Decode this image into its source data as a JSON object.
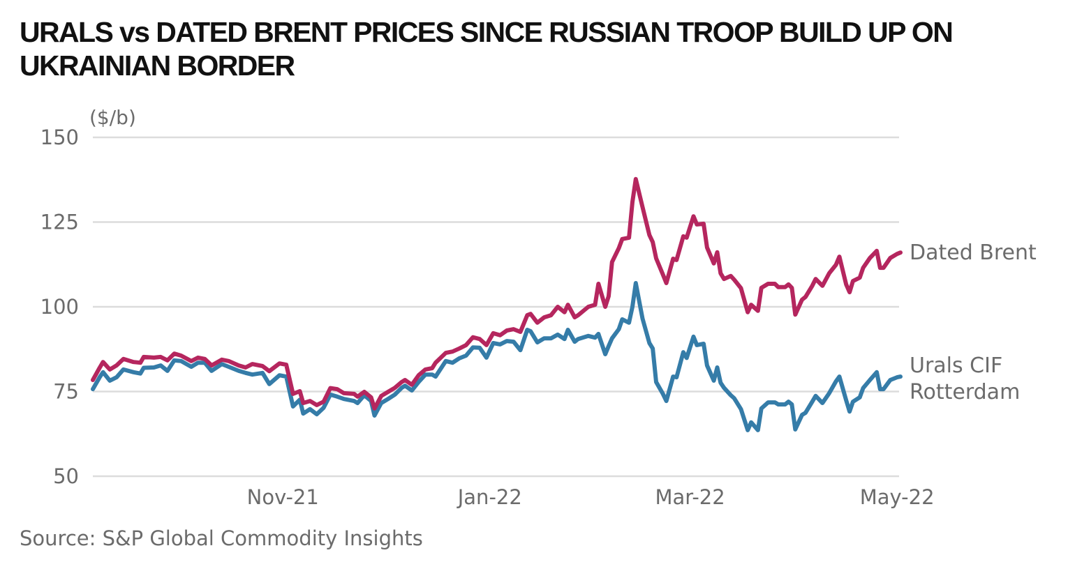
{
  "chart_data": {
    "type": "line",
    "title": "URALS vs DATED BRENT PRICES SINCE RUSSIAN TROOP BUILD UP ON UKRAINIAN BORDER",
    "ylabel": "($/b)",
    "xlabel": "",
    "ylim": [
      50,
      150
    ],
    "yticks": [
      "150",
      "125",
      "100",
      "75",
      "50"
    ],
    "xticks": [
      {
        "label": "Nov-21",
        "date": "2021-11-01"
      },
      {
        "label": "Jan-22",
        "date": "2022-01-01"
      },
      {
        "label": "Mar-22",
        "date": "2022-03-01"
      },
      {
        "label": "May-22",
        "date": "2022-05-01"
      }
    ],
    "xlim": [
      "2021-09-06",
      "2022-05-02"
    ],
    "grid": "horizontal",
    "legend": "end-of-line labels, right",
    "source": "Source: S&P Global Commodity Insights",
    "x": [
      "2021-09-06",
      "2021-09-08",
      "2021-09-09",
      "2021-09-11",
      "2021-09-13",
      "2021-09-15",
      "2021-09-18",
      "2021-09-20",
      "2021-09-21",
      "2021-09-24",
      "2021-09-26",
      "2021-09-28",
      "2021-09-30",
      "2021-10-02",
      "2021-10-05",
      "2021-10-07",
      "2021-10-09",
      "2021-10-11",
      "2021-10-14",
      "2021-10-16",
      "2021-10-19",
      "2021-10-21",
      "2021-10-23",
      "2021-10-26",
      "2021-10-28",
      "2021-10-31",
      "2021-11-02",
      "2021-11-04",
      "2021-11-06",
      "2021-11-07",
      "2021-11-09",
      "2021-11-11",
      "2021-11-13",
      "2021-11-15",
      "2021-11-17",
      "2021-11-19",
      "2021-11-22",
      "2021-11-23",
      "2021-11-25",
      "2021-11-27",
      "2021-11-28",
      "2021-11-30",
      "2021-12-02",
      "2021-12-04",
      "2021-12-06",
      "2021-12-07",
      "2021-12-09",
      "2021-12-11",
      "2021-12-13",
      "2021-12-15",
      "2021-12-16",
      "2021-12-19",
      "2021-12-21",
      "2021-12-23",
      "2021-12-25",
      "2021-12-27",
      "2021-12-29",
      "2021-12-31",
      "2022-01-02",
      "2022-01-04",
      "2022-01-06",
      "2022-01-08",
      "2022-01-10",
      "2022-01-12",
      "2022-01-13",
      "2022-01-15",
      "2022-01-17",
      "2022-01-19",
      "2022-01-21",
      "2022-01-23",
      "2022-01-24",
      "2022-01-26",
      "2022-01-27",
      "2022-01-30",
      "2022-02-01",
      "2022-02-02",
      "2022-02-04",
      "2022-02-05",
      "2022-02-06",
      "2022-02-08",
      "2022-02-09",
      "2022-02-11",
      "2022-02-12",
      "2022-02-13",
      "2022-02-15",
      "2022-02-17",
      "2022-02-18",
      "2022-02-19",
      "2022-02-21",
      "2022-02-22",
      "2022-02-24",
      "2022-02-25",
      "2022-02-27",
      "2022-02-28",
      "2022-03-02",
      "2022-03-03",
      "2022-03-05",
      "2022-03-06",
      "2022-03-08",
      "2022-03-09",
      "2022-03-10",
      "2022-03-11",
      "2022-03-13",
      "2022-03-14",
      "2022-03-16",
      "2022-03-18",
      "2022-03-19",
      "2022-03-21",
      "2022-03-22",
      "2022-03-24",
      "2022-03-26",
      "2022-03-27",
      "2022-03-29",
      "2022-03-30",
      "2022-03-31",
      "2022-04-01",
      "2022-04-03",
      "2022-04-04",
      "2022-04-06",
      "2022-04-07",
      "2022-04-09",
      "2022-04-11",
      "2022-04-13",
      "2022-04-14",
      "2022-04-16",
      "2022-04-17",
      "2022-04-18",
      "2022-04-20",
      "2022-04-21",
      "2022-04-23",
      "2022-04-25",
      "2022-04-26",
      "2022-04-27",
      "2022-04-29",
      "2022-05-01",
      "2022-05-02"
    ],
    "series": [
      {
        "name": "Dated Brent",
        "color": "#b5265e",
        "values": [
          78.4,
          82.0,
          83.7,
          81.5,
          82.7,
          84.6,
          83.7,
          83.5,
          85.2,
          85.0,
          85.2,
          84.2,
          86.2,
          85.6,
          84.0,
          85.0,
          84.6,
          82.7,
          84.4,
          84.0,
          82.7,
          82.1,
          83.1,
          82.5,
          81.0,
          83.3,
          82.9,
          74.3,
          75.1,
          71.6,
          72.2,
          71.0,
          72.0,
          76.0,
          75.7,
          74.5,
          74.3,
          73.5,
          74.9,
          73.3,
          70.0,
          73.7,
          74.9,
          76.1,
          77.8,
          78.4,
          77.0,
          79.8,
          81.5,
          81.9,
          83.5,
          86.4,
          86.8,
          87.7,
          88.7,
          91.0,
          90.5,
          88.7,
          92.2,
          91.6,
          93.0,
          93.4,
          92.6,
          97.5,
          97.9,
          95.3,
          96.9,
          97.5,
          100.0,
          98.4,
          100.6,
          96.9,
          97.5,
          100.0,
          100.6,
          106.8,
          100.0,
          103.1,
          113.2,
          117.3,
          120.0,
          120.4,
          130.9,
          137.7,
          129.4,
          121.2,
          119.1,
          114.3,
          109.5,
          107.0,
          114.2,
          113.8,
          120.8,
          120.4,
          126.7,
          124.3,
          124.5,
          117.5,
          112.8,
          116.1,
          109.9,
          108.2,
          109.1,
          108.0,
          105.5,
          98.4,
          100.6,
          98.8,
          105.6,
          106.8,
          106.8,
          105.8,
          105.8,
          106.6,
          105.6,
          97.7,
          102.1,
          102.9,
          106.2,
          108.2,
          106.2,
          109.9,
          112.4,
          114.8,
          106.6,
          104.3,
          107.6,
          108.6,
          111.5,
          114.4,
          116.5,
          111.5,
          111.5,
          114.4,
          115.6,
          116.0
        ]
      },
      {
        "name": "Urals CIF Rotterdam",
        "color": "#357ca8",
        "values": [
          75.7,
          79.2,
          80.7,
          78.2,
          79.2,
          81.5,
          80.7,
          80.3,
          82.0,
          82.1,
          82.7,
          81.1,
          84.2,
          84.0,
          82.3,
          83.5,
          83.5,
          81.1,
          83.1,
          82.3,
          81.1,
          80.5,
          80.0,
          80.5,
          77.2,
          79.8,
          79.4,
          70.6,
          72.6,
          68.5,
          69.8,
          68.3,
          70.2,
          74.1,
          73.5,
          72.8,
          72.2,
          71.6,
          73.9,
          72.2,
          67.9,
          71.6,
          72.8,
          74.1,
          76.1,
          76.7,
          75.3,
          77.8,
          80.0,
          80.0,
          79.4,
          84.0,
          83.5,
          84.8,
          85.6,
          88.0,
          87.9,
          85.0,
          89.3,
          88.9,
          89.9,
          89.7,
          87.2,
          93.2,
          92.8,
          89.5,
          90.7,
          90.7,
          91.8,
          90.5,
          93.2,
          89.7,
          90.5,
          91.4,
          90.9,
          92.0,
          86.0,
          88.4,
          90.7,
          93.4,
          96.3,
          95.3,
          100.0,
          107.0,
          96.5,
          89.3,
          87.7,
          77.8,
          74.3,
          72.2,
          79.4,
          79.2,
          86.6,
          84.9,
          91.2,
          88.7,
          89.1,
          82.7,
          78.2,
          82.1,
          77.6,
          76.1,
          73.9,
          73.0,
          69.8,
          63.6,
          65.9,
          63.6,
          70.0,
          71.8,
          71.8,
          71.2,
          71.2,
          72.0,
          71.2,
          63.8,
          68.1,
          68.7,
          72.0,
          73.7,
          71.6,
          74.5,
          78.0,
          79.4,
          72.4,
          69.1,
          72.0,
          73.3,
          76.0,
          78.4,
          80.7,
          75.7,
          75.7,
          78.4,
          79.2,
          79.4
        ]
      }
    ],
    "series_labels": {
      "brent": "Dated Brent",
      "urals_line1": "Urals CIF",
      "urals_line2": "Rotterdam"
    }
  }
}
